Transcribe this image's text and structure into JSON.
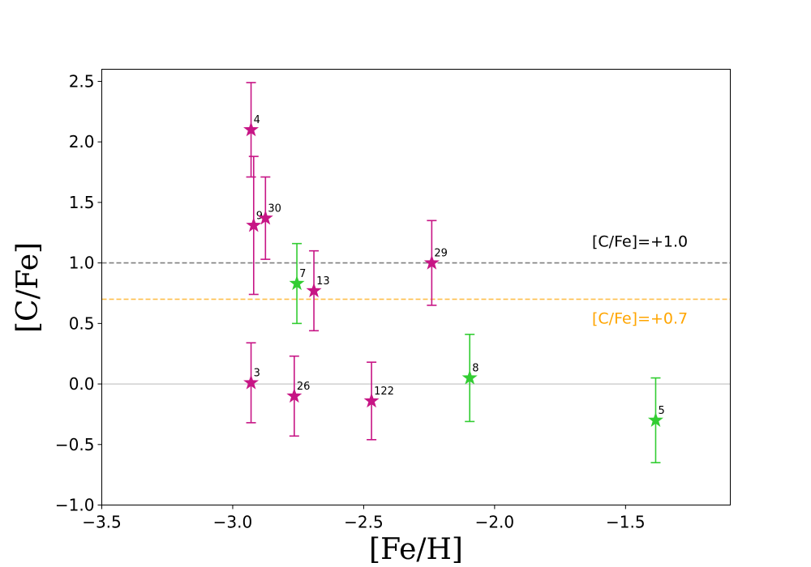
{
  "chart_data": {
    "type": "scatter",
    "title": "",
    "xlabel": "[Fe/H]",
    "ylabel": "[C/Fe]",
    "xlim": [
      -3.5,
      -1.1
    ],
    "ylim": [
      -1.0,
      2.6
    ],
    "grid": false,
    "x_ticks": [
      -3.5,
      -3.0,
      -2.5,
      -2.0,
      -1.5
    ],
    "x_tick_labels": [
      "−3.5",
      "−3.0",
      "−2.5",
      "−2.0",
      "−1.5"
    ],
    "y_ticks": [
      -1.0,
      -0.5,
      0.0,
      0.5,
      1.0,
      1.5,
      2.0,
      2.5
    ],
    "y_tick_labels": [
      "−1.0",
      "−0.5",
      "0.0",
      "0.5",
      "1.0",
      "1.5",
      "2.0",
      "2.5"
    ],
    "colors": {
      "magenta": "#c71585",
      "green": "#32cd32",
      "gray_line": "#7f7f7f",
      "orange_line": "#ffc04d",
      "zero_line": "#c0c0c0",
      "orange_text": "#ffa500"
    },
    "reference_lines": [
      {
        "y": 1.0,
        "label": "[C/Fe]=+1.0",
        "style": "dashed",
        "color": "#7f7f7f",
        "text_color": "#000000"
      },
      {
        "y": 0.7,
        "label": "[C/Fe]=+0.7",
        "style": "dashed",
        "color": "#ffc04d",
        "text_color": "#ffa500"
      },
      {
        "y": 0.0,
        "label": "",
        "style": "solid",
        "color": "#c0c0c0",
        "text_color": "#000000"
      }
    ],
    "series": [
      {
        "name": "magenta",
        "color": "#c71585",
        "points": [
          {
            "label": "4",
            "x": -2.93,
            "y": 2.1,
            "err": 0.39
          },
          {
            "label": "9",
            "x": -2.92,
            "y": 1.31,
            "err": 0.57
          },
          {
            "label": "30",
            "x": -2.875,
            "y": 1.37,
            "err": 0.34
          },
          {
            "label": "13",
            "x": -2.69,
            "y": 0.77,
            "err": 0.33
          },
          {
            "label": "29",
            "x": -2.24,
            "y": 1.0,
            "err": 0.35
          },
          {
            "label": "3",
            "x": -2.93,
            "y": 0.01,
            "err": 0.33
          },
          {
            "label": "26",
            "x": -2.765,
            "y": -0.1,
            "err": 0.33
          },
          {
            "label": "122",
            "x": -2.47,
            "y": -0.14,
            "err": 0.32
          }
        ]
      },
      {
        "name": "green",
        "color": "#32cd32",
        "points": [
          {
            "label": "7",
            "x": -2.755,
            "y": 0.83,
            "err": 0.33
          },
          {
            "label": "8",
            "x": -2.095,
            "y": 0.05,
            "err": 0.36
          },
          {
            "label": "5",
            "x": -1.385,
            "y": -0.3,
            "err": 0.35
          }
        ]
      }
    ]
  }
}
